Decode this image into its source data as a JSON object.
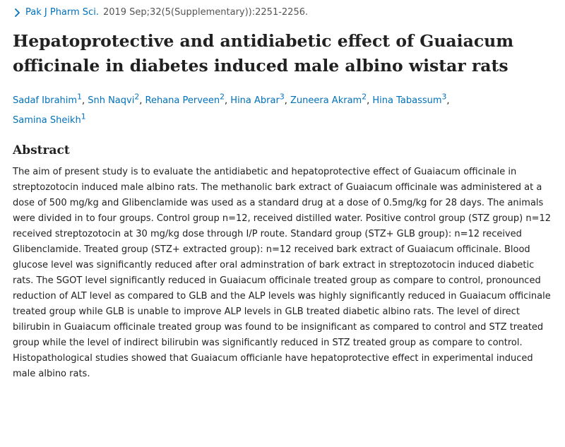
{
  "citation": {
    "journal": "Pak J Pharm Sci.",
    "details": "2019 Sep;32(5(Supplementary)):2251-2256."
  },
  "article": {
    "title": "Hepatoprotective and antidiabetic effect of Guaiacum officinale in diabetes induced male albino wistar rats"
  },
  "authors": [
    {
      "name": "Sadaf Ibrahim",
      "aff": "1"
    },
    {
      "name": "Snh Naqvi",
      "aff": "2"
    },
    {
      "name": "Rehana Perveen",
      "aff": "2"
    },
    {
      "name": "Hina Abrar",
      "aff": "3"
    },
    {
      "name": "Zuneera Akram",
      "aff": "2"
    },
    {
      "name": "Hina Tabassum",
      "aff": "3"
    },
    {
      "name": "Samina Sheikh",
      "aff": "1"
    }
  ],
  "abstract": {
    "heading": "Abstract",
    "text": "The aim of present study is to evaluate the antidiabetic and hepatoprotective effect of Guaiacum officinale in streptozotocin induced male albino rats. The methanolic bark extract of Guaiacum officinale was administered at a dose of 500 mg/kg and Glibenclamide was used as a standard drug at a dose of 0.5mg/kg for 28 days. The animals were divided in to four groups. Control group n=12, received distilled water. Positive control group (STZ group) n=12 received streptozotocin at 30 mg/kg dose through I/P route. Standard group (STZ+ GLB group): n=12 received Glibenclamide. Treated group (STZ+ extracted group): n=12 received bark extract of Guaiacum officinale. Blood glucose level was significantly reduced after oral adminstration of bark extract in streptozotocin induced diabetic rats. The SGOT level significantly reduced in Guaiacum officinale treated group as compare to control, pronounced reduction of ALT level as compared to GLB and the ALP levels was highly significantly reduced in Guaiacum officinale treated group while GLB is unable to improve ALP levels in GLB treated diabetic albino rats. The level of direct bilirubin in Guaiacum officinale treated group was found to be insignificant as compared to control and STZ treated group while the level of indirect bilirubin was significantly reduced in STZ treated group as compare to control. Histopathological studies showed that Guaiacum officianle have hepatoprotective effect in experimental induced male albino rats."
  },
  "icons": {
    "citation_chevron": "chevron-right-icon"
  },
  "colors": {
    "link": "#0071bc",
    "text": "#212121",
    "muted": "#555555"
  }
}
